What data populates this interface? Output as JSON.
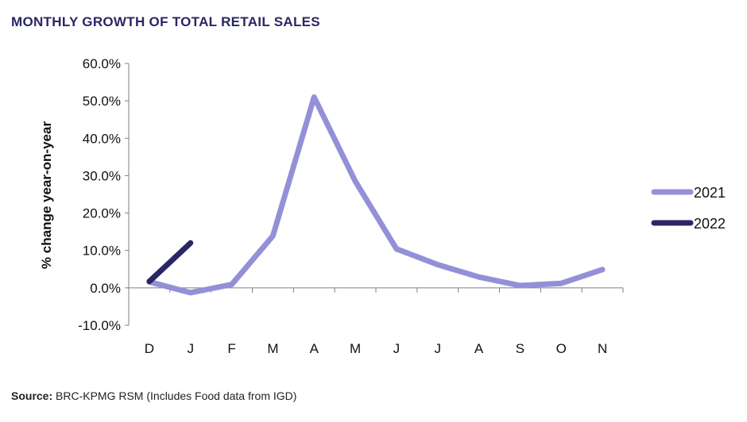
{
  "title": "MONTHLY GROWTH OF TOTAL RETAIL SALES",
  "source": {
    "label": "Source:",
    "text": "BRC-KPMG RSM (Includes Food data from IGD)"
  },
  "chart_data": {
    "type": "line",
    "title": "MONTHLY GROWTH OF TOTAL RETAIL SALES",
    "xlabel": "",
    "ylabel": "% change year-on-year",
    "categories": [
      "D",
      "J",
      "F",
      "M",
      "A",
      "M",
      "J",
      "J",
      "A",
      "S",
      "O",
      "N"
    ],
    "ylim": [
      -10,
      60
    ],
    "yticks": [
      -10,
      0,
      10,
      20,
      30,
      40,
      50,
      60
    ],
    "ytick_labels": [
      "-10.0%",
      "0.0%",
      "10.0%",
      "20.0%",
      "30.0%",
      "40.0%",
      "50.0%",
      "60.0%"
    ],
    "grid": false,
    "legend_position": "right",
    "series": [
      {
        "name": "2021",
        "color": "#9490d8",
        "values": [
          1.6,
          -1.3,
          0.9,
          13.9,
          51.0,
          28.5,
          10.4,
          6.2,
          2.9,
          0.6,
          1.2,
          4.9
        ]
      },
      {
        "name": "2022",
        "color": "#2a2666",
        "values": [
          1.7,
          12.0,
          null,
          null,
          null,
          null,
          null,
          null,
          null,
          null,
          null,
          null
        ]
      }
    ]
  }
}
